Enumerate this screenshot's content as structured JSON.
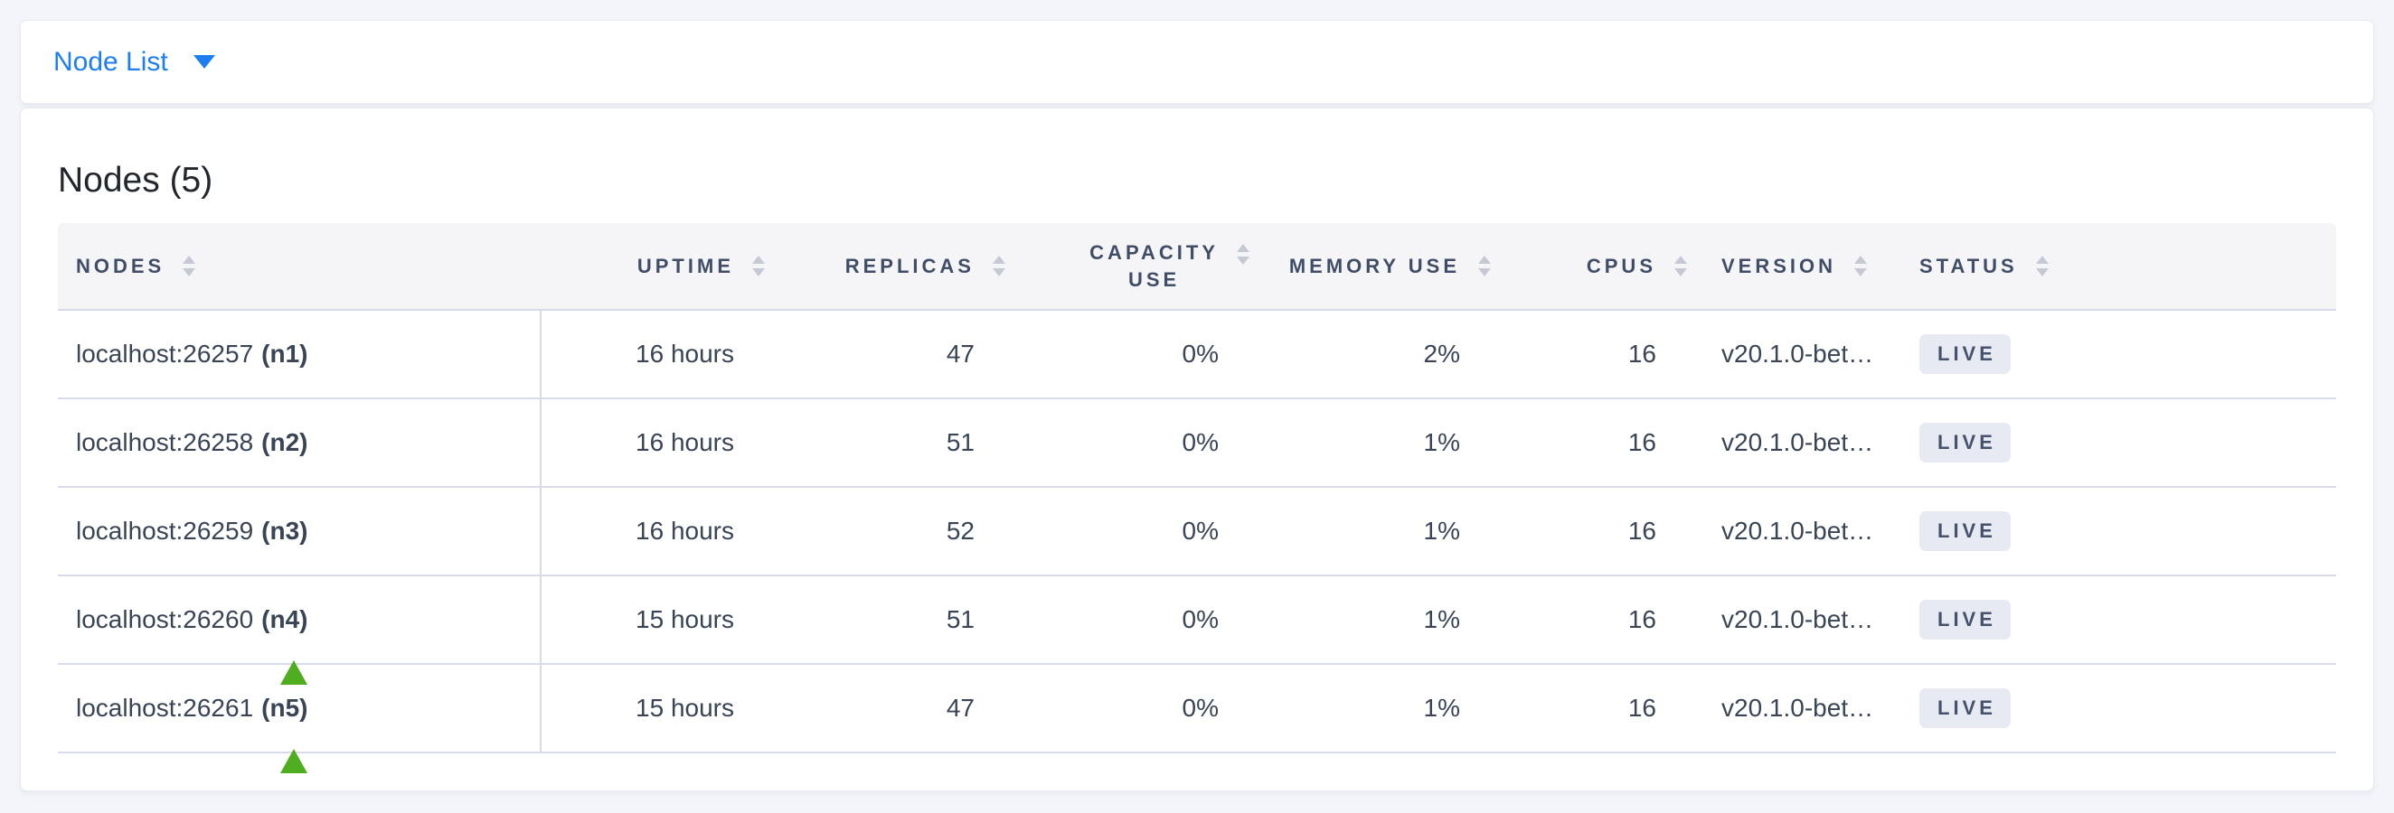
{
  "topbar": {
    "dropdown_label": "Node List"
  },
  "main": {
    "title": "Nodes (5)"
  },
  "table": {
    "columns": [
      {
        "label": "NODES"
      },
      {
        "label": "UPTIME"
      },
      {
        "label": "REPLICAS"
      },
      {
        "label": "CAPACITY USE",
        "lines": [
          "CAPACITY",
          "USE"
        ]
      },
      {
        "label": "MEMORY USE"
      },
      {
        "label": "CPUS"
      },
      {
        "label": "VERSION"
      },
      {
        "label": "STATUS"
      }
    ],
    "rows": [
      {
        "address": "localhost:26257",
        "id": "(n1)",
        "uptime": "16 hours",
        "replicas": "47",
        "capacity_use": "0%",
        "memory_use": "2%",
        "cpus": "16",
        "version": "v20.1.0-bet…",
        "status": "LIVE"
      },
      {
        "address": "localhost:26258",
        "id": "(n2)",
        "uptime": "16 hours",
        "replicas": "51",
        "capacity_use": "0%",
        "memory_use": "1%",
        "cpus": "16",
        "version": "v20.1.0-bet…",
        "status": "LIVE"
      },
      {
        "address": "localhost:26259",
        "id": "(n3)",
        "uptime": "16 hours",
        "replicas": "52",
        "capacity_use": "0%",
        "memory_use": "1%",
        "cpus": "16",
        "version": "v20.1.0-bet…",
        "status": "LIVE"
      },
      {
        "address": "localhost:26260",
        "id": "(n4)",
        "uptime": "15 hours",
        "replicas": "51",
        "capacity_use": "0%",
        "memory_use": "1%",
        "cpus": "16",
        "version": "v20.1.0-bet…",
        "status": "LIVE"
      },
      {
        "address": "localhost:26261",
        "id": "(n5)",
        "uptime": "15 hours",
        "replicas": "47",
        "capacity_use": "0%",
        "memory_use": "1%",
        "cpus": "16",
        "version": "v20.1.0-bet…",
        "status": "LIVE"
      }
    ]
  },
  "colors": {
    "accent_blue": "#1d7ef2",
    "annotation_green": "#4fae20",
    "badge_bg": "#e7eaf2",
    "badge_text": "#44526b",
    "header_text": "#3f4d66",
    "body_text": "#394455",
    "row_border": "#d7dbe7",
    "page_bg": "#f4f5fa"
  }
}
